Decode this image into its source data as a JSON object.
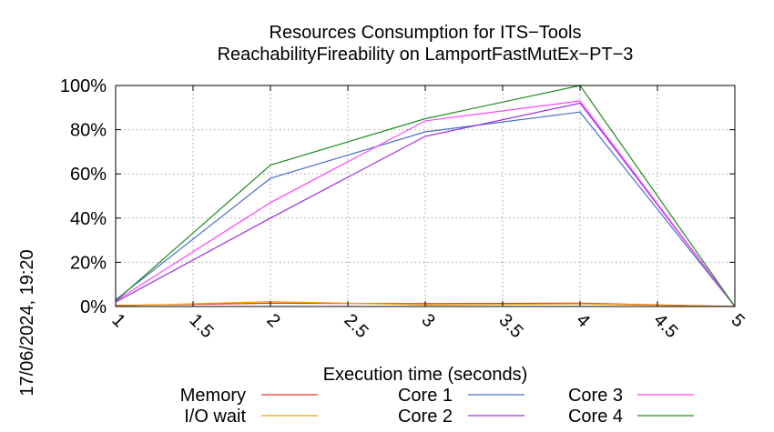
{
  "chart_data": {
    "type": "line",
    "title": "Resources Consumption for ITS−Tools",
    "subtitle": "ReachabilityFireability on LamportFastMutEx−PT−3",
    "xlabel": "Execution time (seconds)",
    "ylabel": "",
    "timestamp": "17/06/2024, 19:20",
    "xlim": [
      1,
      5
    ],
    "ylim": [
      0,
      100
    ],
    "x_ticks": [
      "1",
      "1.5",
      "2",
      "2.5",
      "3",
      "3.5",
      "4",
      "4.5",
      "5"
    ],
    "y_ticks": [
      "0%",
      "20%",
      "40%",
      "60%",
      "80%",
      "100%"
    ],
    "grid": true,
    "legend_position": "bottom",
    "x": [
      1,
      2,
      3,
      4,
      5
    ],
    "series": [
      {
        "name": "Memory",
        "color": "#e8302a",
        "values": [
          0.5,
          1.5,
          1.3,
          1.5,
          0
        ]
      },
      {
        "name": "I/O wait",
        "color": "#f0a000",
        "values": [
          0.3,
          2.2,
          0.8,
          1.2,
          0
        ]
      },
      {
        "name": "Core 1",
        "color": "#4a70c8",
        "values": [
          3,
          58,
          79,
          88,
          0
        ]
      },
      {
        "name": "Core 2",
        "color": "#9b30e0",
        "values": [
          2,
          40,
          77,
          92,
          0
        ]
      },
      {
        "name": "Core 3",
        "color": "#ff40ff",
        "values": [
          2.5,
          47,
          84,
          93,
          0
        ]
      },
      {
        "name": "Core 4",
        "color": "#1e8c1e",
        "values": [
          2.5,
          64,
          85,
          100,
          0
        ]
      }
    ]
  }
}
